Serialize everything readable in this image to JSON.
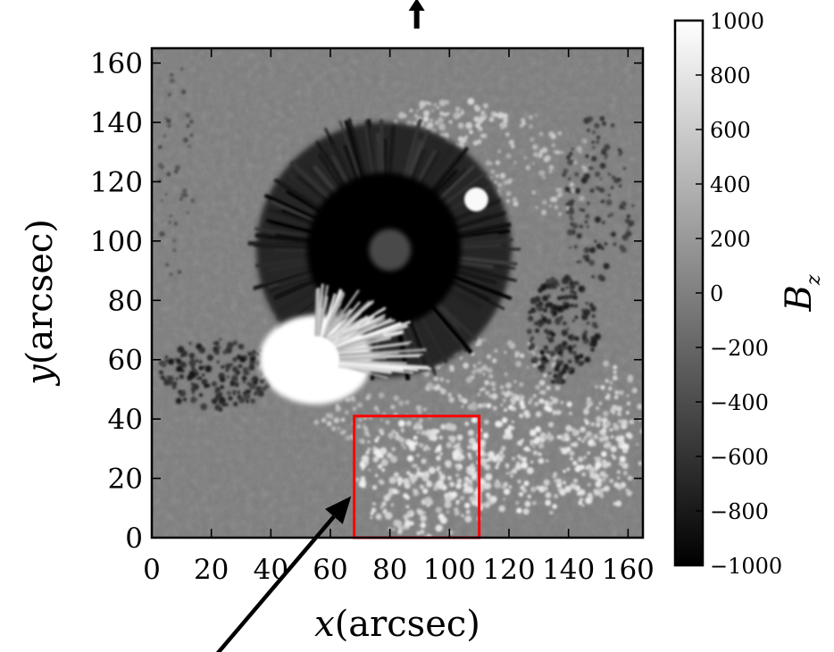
{
  "chart_data": {
    "type": "heatmap",
    "description_values": "magnetogram image map of vertical magnetic field with colorbar",
    "xlabel_var": "x",
    "xlabel_unit": "(arcsec)",
    "ylabel_var": "y",
    "ylabel_unit": "(arcsec)",
    "xlim": [
      0,
      165
    ],
    "ylim": [
      0,
      165
    ],
    "x_ticks": [
      "0",
      "20",
      "40",
      "60",
      "80",
      "100",
      "120",
      "140",
      "160"
    ],
    "y_ticks": [
      "0",
      "20",
      "40",
      "60",
      "80",
      "100",
      "120",
      "140",
      "160"
    ],
    "x_tick_values": [
      0,
      20,
      40,
      60,
      80,
      100,
      120,
      140,
      160
    ],
    "y_tick_values": [
      0,
      20,
      40,
      60,
      80,
      100,
      120,
      140,
      160
    ],
    "colorbar": {
      "label_var": "B",
      "label_sub": "z",
      "range": [
        -1000,
        1000
      ],
      "tick_values": [
        1000,
        800,
        600,
        400,
        200,
        0,
        -200,
        -400,
        -600,
        -800,
        -1000
      ],
      "tick_labels": [
        "1000",
        "800",
        "600",
        "400",
        "200",
        "0",
        "−200",
        "−400",
        "−600",
        "−800",
        "−1000"
      ],
      "colormap": "grayscale (black = negative, white = positive)"
    },
    "features": {
      "negative_spot_umbra_center": [
        80,
        97
      ],
      "negative_spot_radius": 42,
      "positive_spot_center": [
        55,
        60
      ],
      "small_positive_spot_center": [
        109,
        114
      ],
      "background_level": -20
    },
    "highlight_box": {
      "x_range": [
        68,
        110
      ],
      "y_range": [
        0,
        41
      ],
      "color": "#ff0000"
    },
    "arrow_bottom": {
      "from": [
        17,
        -45
      ],
      "to": [
        67,
        14
      ]
    },
    "arrow_top": {
      "at_x": 89,
      "points": "up"
    }
  },
  "colors": {
    "box": "#ff0000",
    "axes": "#000000",
    "background": "#ffffff"
  }
}
